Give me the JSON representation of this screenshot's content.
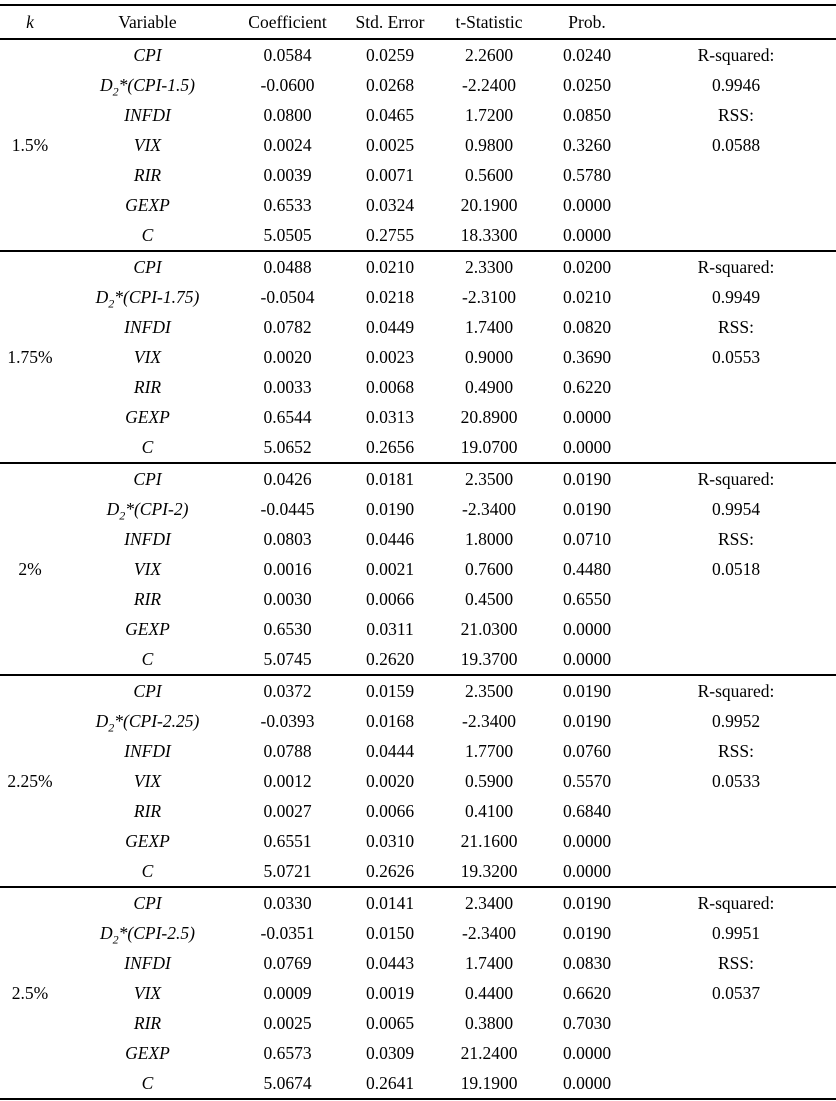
{
  "table": {
    "headers": {
      "k": "k",
      "variable": "Variable",
      "coefficient": "Coefficient",
      "std_error": "Std. Error",
      "t_statistic": "t-Statistic",
      "prob": "Prob."
    },
    "stat_labels": {
      "r_squared": "R-squared:",
      "rss": "RSS:"
    },
    "blocks": [
      {
        "k": "1.5%",
        "r_squared": "0.9946",
        "rss": "0.0588",
        "rows": [
          {
            "variable": "CPI",
            "coefficient": "0.0584",
            "std_error": "0.0259",
            "t_statistic": "2.2600",
            "prob": "0.0240"
          },
          {
            "variable": "D_{2}*(CPI-1.5)",
            "coefficient": "-0.0600",
            "std_error": "0.0268",
            "t_statistic": "-2.2400",
            "prob": "0.0250"
          },
          {
            "variable": "INFDI",
            "coefficient": "0.0800",
            "std_error": "0.0465",
            "t_statistic": "1.7200",
            "prob": "0.0850"
          },
          {
            "variable": "VIX",
            "coefficient": "0.0024",
            "std_error": "0.0025",
            "t_statistic": "0.9800",
            "prob": "0.3260"
          },
          {
            "variable": "RIR",
            "coefficient": "0.0039",
            "std_error": "0.0071",
            "t_statistic": "0.5600",
            "prob": "0.5780"
          },
          {
            "variable": "GEXP",
            "coefficient": "0.6533",
            "std_error": "0.0324",
            "t_statistic": "20.1900",
            "prob": "0.0000"
          },
          {
            "variable": "C",
            "coefficient": "5.0505",
            "std_error": "0.2755",
            "t_statistic": "18.3300",
            "prob": "0.0000"
          }
        ]
      },
      {
        "k": "1.75%",
        "r_squared": "0.9949",
        "rss": "0.0553",
        "rows": [
          {
            "variable": "CPI",
            "coefficient": "0.0488",
            "std_error": "0.0210",
            "t_statistic": "2.3300",
            "prob": "0.0200"
          },
          {
            "variable": "D_{2}*(CPI-1.75)",
            "coefficient": "-0.0504",
            "std_error": "0.0218",
            "t_statistic": "-2.3100",
            "prob": "0.0210"
          },
          {
            "variable": "INFDI",
            "coefficient": "0.0782",
            "std_error": "0.0449",
            "t_statistic": "1.7400",
            "prob": "0.0820"
          },
          {
            "variable": "VIX",
            "coefficient": "0.0020",
            "std_error": "0.0023",
            "t_statistic": "0.9000",
            "prob": "0.3690"
          },
          {
            "variable": "RIR",
            "coefficient": "0.0033",
            "std_error": "0.0068",
            "t_statistic": "0.4900",
            "prob": "0.6220"
          },
          {
            "variable": "GEXP",
            "coefficient": "0.6544",
            "std_error": "0.0313",
            "t_statistic": "20.8900",
            "prob": "0.0000"
          },
          {
            "variable": "C",
            "coefficient": "5.0652",
            "std_error": "0.2656",
            "t_statistic": "19.0700",
            "prob": "0.0000"
          }
        ]
      },
      {
        "k": "2%",
        "r_squared": "0.9954",
        "rss": "0.0518",
        "rows": [
          {
            "variable": "CPI",
            "coefficient": "0.0426",
            "std_error": "0.0181",
            "t_statistic": "2.3500",
            "prob": "0.0190"
          },
          {
            "variable": "D_{2}*(CPI-2)",
            "coefficient": "-0.0445",
            "std_error": "0.0190",
            "t_statistic": "-2.3400",
            "prob": "0.0190"
          },
          {
            "variable": "INFDI",
            "coefficient": "0.0803",
            "std_error": "0.0446",
            "t_statistic": "1.8000",
            "prob": "0.0710"
          },
          {
            "variable": "VIX",
            "coefficient": "0.0016",
            "std_error": "0.0021",
            "t_statistic": "0.7600",
            "prob": "0.4480"
          },
          {
            "variable": "RIR",
            "coefficient": "0.0030",
            "std_error": "0.0066",
            "t_statistic": "0.4500",
            "prob": "0.6550"
          },
          {
            "variable": "GEXP",
            "coefficient": "0.6530",
            "std_error": "0.0311",
            "t_statistic": "21.0300",
            "prob": "0.0000"
          },
          {
            "variable": "C",
            "coefficient": "5.0745",
            "std_error": "0.2620",
            "t_statistic": "19.3700",
            "prob": "0.0000"
          }
        ]
      },
      {
        "k": "2.25%",
        "r_squared": "0.9952",
        "rss": "0.0533",
        "rows": [
          {
            "variable": "CPI",
            "coefficient": "0.0372",
            "std_error": "0.0159",
            "t_statistic": "2.3500",
            "prob": "0.0190"
          },
          {
            "variable": "D_{2}*(CPI-2.25)",
            "coefficient": "-0.0393",
            "std_error": "0.0168",
            "t_statistic": "-2.3400",
            "prob": "0.0190"
          },
          {
            "variable": "INFDI",
            "coefficient": "0.0788",
            "std_error": "0.0444",
            "t_statistic": "1.7700",
            "prob": "0.0760"
          },
          {
            "variable": "VIX",
            "coefficient": "0.0012",
            "std_error": "0.0020",
            "t_statistic": "0.5900",
            "prob": "0.5570"
          },
          {
            "variable": "RIR",
            "coefficient": "0.0027",
            "std_error": "0.0066",
            "t_statistic": "0.4100",
            "prob": "0.6840"
          },
          {
            "variable": "GEXP",
            "coefficient": "0.6551",
            "std_error": "0.0310",
            "t_statistic": "21.1600",
            "prob": "0.0000"
          },
          {
            "variable": "C",
            "coefficient": "5.0721",
            "std_error": "0.2626",
            "t_statistic": "19.3200",
            "prob": "0.0000"
          }
        ]
      },
      {
        "k": "2.5%",
        "r_squared": "0.9951",
        "rss": "0.0537",
        "rows": [
          {
            "variable": "CPI",
            "coefficient": "0.0330",
            "std_error": "0.0141",
            "t_statistic": "2.3400",
            "prob": "0.0190"
          },
          {
            "variable": "D_{2}*(CPI-2.5)",
            "coefficient": "-0.0351",
            "std_error": "0.0150",
            "t_statistic": "-2.3400",
            "prob": "0.0190"
          },
          {
            "variable": "INFDI",
            "coefficient": "0.0769",
            "std_error": "0.0443",
            "t_statistic": "1.7400",
            "prob": "0.0830"
          },
          {
            "variable": "VIX",
            "coefficient": "0.0009",
            "std_error": "0.0019",
            "t_statistic": "0.4400",
            "prob": "0.6620"
          },
          {
            "variable": "RIR",
            "coefficient": "0.0025",
            "std_error": "0.0065",
            "t_statistic": "0.3800",
            "prob": "0.7030"
          },
          {
            "variable": "GEXP",
            "coefficient": "0.6573",
            "std_error": "0.0309",
            "t_statistic": "21.2400",
            "prob": "0.0000"
          },
          {
            "variable": "C",
            "coefficient": "5.0674",
            "std_error": "0.2641",
            "t_statistic": "19.1900",
            "prob": "0.0000"
          }
        ]
      }
    ]
  }
}
